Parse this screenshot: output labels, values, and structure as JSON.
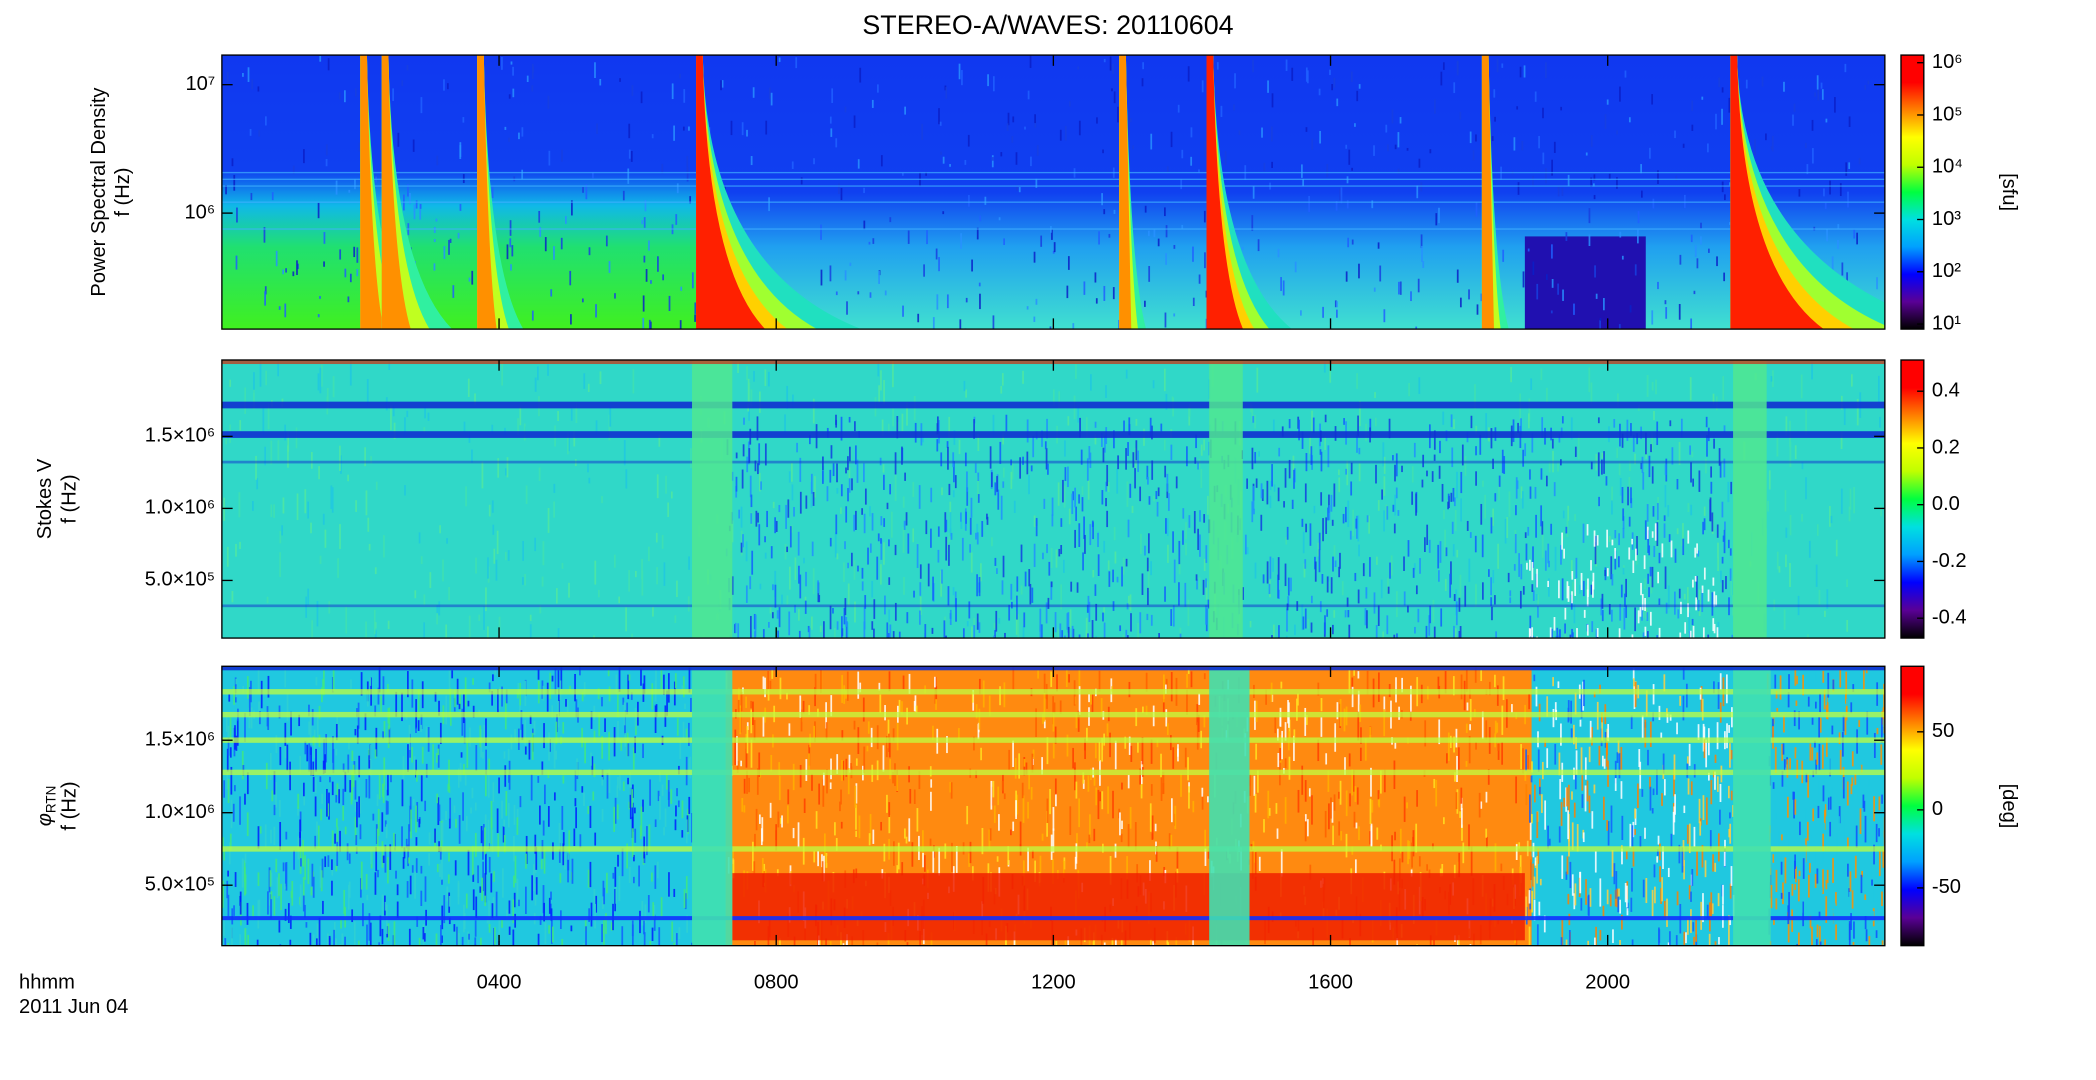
{
  "chart_data": {
    "type": "spectrogram",
    "title": "STEREO-A/WAVES: 20110604",
    "xlabel": "hhmm",
    "date_label": "2011 Jun 04",
    "xlim": [
      0,
      24
    ],
    "xticks": [
      {
        "value": 4,
        "label": "0400"
      },
      {
        "value": 8,
        "label": "0800"
      },
      {
        "value": 12,
        "label": "1200"
      },
      {
        "value": 16,
        "label": "1600"
      },
      {
        "value": 20,
        "label": "2000"
      }
    ],
    "panels": [
      {
        "type": "spectrogram",
        "ylabel": "Power Spectral Density",
        "ylabel_unit": "f (Hz)",
        "yscale": "log",
        "ylim": [
          125000,
          17000000
        ],
        "yticks": [
          {
            "value": 1000000,
            "label": "10⁶"
          },
          {
            "value": 10000000,
            "label": "10⁷"
          }
        ],
        "cscale": "log",
        "clim": [
          8,
          1400000
        ],
        "cticks": [
          {
            "value": 10,
            "label": "10¹"
          },
          {
            "value": 100,
            "label": "10²"
          },
          {
            "value": 1000,
            "label": "10³"
          },
          {
            "value": 10000,
            "label": "10⁴"
          },
          {
            "value": 100000,
            "label": "10⁵"
          },
          {
            "value": 1000000,
            "label": "10⁶"
          }
        ],
        "clabel": "[sfu]",
        "colormap": [
          "#000000",
          "#5a0096",
          "#0000ff",
          "#00a0ff",
          "#00e0e0",
          "#00ff40",
          "#c0ff00",
          "#ffff00",
          "#ff8000",
          "#ff0000",
          "#ff0000"
        ]
      },
      {
        "type": "spectrogram",
        "ylabel": "Stokes V",
        "ylabel_unit": "f (Hz)",
        "yscale": "linear",
        "ylim": [
          100000,
          2030000
        ],
        "yticks": [
          {
            "value": 500000,
            "label": "5.0×10⁵"
          },
          {
            "value": 1000000,
            "label": "1.0×10⁶"
          },
          {
            "value": 1500000,
            "label": "1.5×10⁶"
          }
        ],
        "cscale": "linear",
        "clim": [
          -0.47,
          0.51
        ],
        "cticks": [
          -0.4,
          -0.2,
          {
            "value": 0,
            "label": "0.0"
          },
          0.2,
          0.4
        ],
        "colormap": [
          "#000000",
          "#5a0096",
          "#0000ff",
          "#00a0ff",
          "#00e0e0",
          "#00ff40",
          "#c0ff00",
          "#ffff00",
          "#ff8000",
          "#ff0000",
          "#ff0000"
        ]
      },
      {
        "type": "spectrogram",
        "ylabel": "φ",
        "ylabel_sub": "RTN",
        "ylabel_unit": "f (Hz)",
        "yscale": "linear",
        "ylim": [
          83000,
          2010000
        ],
        "yticks": [
          {
            "value": 500000,
            "label": "5.0×10⁵"
          },
          {
            "value": 1000000,
            "label": "1.0×10⁶"
          },
          {
            "value": 1500000,
            "label": "1.5×10⁶"
          }
        ],
        "cscale": "linear",
        "clim": [
          -87,
          92
        ],
        "cticks": [
          -50,
          0,
          50
        ],
        "clabel": "[deg]",
        "colormap": [
          "#000000",
          "#5a0096",
          "#0000ff",
          "#00a0ff",
          "#00e0e0",
          "#00ff40",
          "#c0ff00",
          "#ffff00",
          "#ff8000",
          "#ff0000",
          "#ff0000"
        ]
      }
    ]
  }
}
